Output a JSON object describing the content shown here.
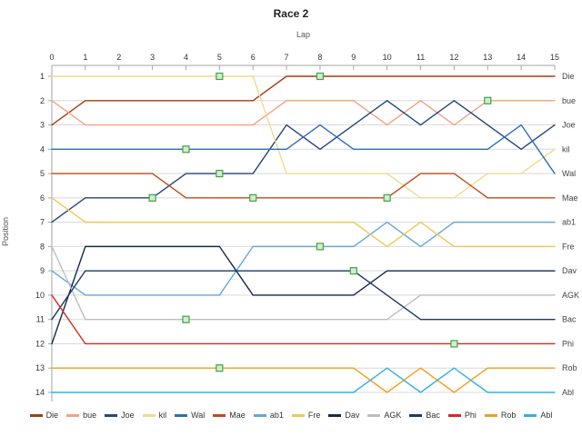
{
  "chart_data": {
    "type": "line",
    "title": "Race 2",
    "xlabel": "Lap",
    "ylabel": "Position",
    "x": [
      0,
      1,
      2,
      3,
      4,
      5,
      6,
      7,
      8,
      9,
      10,
      11,
      12,
      13,
      14,
      15
    ],
    "xlim": [
      0,
      15
    ],
    "ylim": [
      1,
      14
    ],
    "y_ticks": [
      1,
      2,
      3,
      4,
      5,
      6,
      7,
      8,
      9,
      10,
      11,
      12,
      13,
      14
    ],
    "y_axis_inverted": true,
    "grid": "horizontal",
    "legend_position": "bottom",
    "marker_color": "#3fa53f",
    "marker_fill": "#d2ecd2",
    "grid_color": "#d9d9d9",
    "axis_color": "#a6a6a6",
    "tick_text_color": "#333333",
    "right_label_color": "#444444",
    "series": [
      {
        "name": "Die",
        "color": "#A33E10",
        "positions": [
          3,
          2,
          2,
          2,
          2,
          2,
          2,
          1,
          1,
          1,
          1,
          1,
          1,
          1,
          1,
          1
        ]
      },
      {
        "name": "bue",
        "color": "#F4A27D",
        "positions": [
          2,
          3,
          3,
          3,
          3,
          3,
          3,
          2,
          2,
          2,
          3,
          2,
          3,
          2,
          2,
          2
        ]
      },
      {
        "name": "Joe",
        "color": "#24467C",
        "positions": [
          7,
          6,
          6,
          6,
          5,
          5,
          5,
          3,
          4,
          3,
          2,
          3,
          2,
          3,
          4,
          3
        ]
      },
      {
        "name": "kil",
        "color": "#F2DA8E",
        "positions": [
          1,
          1,
          1,
          1,
          1,
          1,
          1,
          5,
          5,
          5,
          5,
          6,
          6,
          5,
          5,
          4
        ]
      },
      {
        "name": "Wal",
        "color": "#2E6EB5",
        "positions": [
          4,
          4,
          4,
          4,
          4,
          4,
          4,
          4,
          3,
          4,
          4,
          4,
          4,
          4,
          3,
          5
        ]
      },
      {
        "name": "Mae",
        "color": "#BF4B12",
        "positions": [
          5,
          5,
          5,
          5,
          6,
          6,
          6,
          6,
          6,
          6,
          6,
          5,
          5,
          6,
          6,
          6
        ]
      },
      {
        "name": "ab1",
        "color": "#62A9DC",
        "positions": [
          9,
          10,
          10,
          10,
          10,
          10,
          8,
          8,
          8,
          8,
          7,
          8,
          7,
          7,
          7,
          7
        ]
      },
      {
        "name": "Fre",
        "color": "#F0C94F",
        "positions": [
          6,
          7,
          7,
          7,
          7,
          7,
          7,
          7,
          7,
          7,
          8,
          7,
          8,
          8,
          8,
          8
        ]
      },
      {
        "name": "Dav",
        "color": "#152A4E",
        "positions": [
          12,
          8,
          8,
          8,
          8,
          8,
          10,
          10,
          10,
          10,
          9,
          9,
          9,
          9,
          9,
          9
        ]
      },
      {
        "name": "AGK",
        "color": "#BEBEBE",
        "positions": [
          8,
          11,
          11,
          11,
          11,
          11,
          11,
          11,
          11,
          11,
          11,
          10,
          10,
          10,
          10,
          10
        ]
      },
      {
        "name": "Bac",
        "color": "#1B3B66",
        "positions": [
          11,
          9,
          9,
          9,
          9,
          9,
          9,
          9,
          9,
          9,
          10,
          11,
          11,
          11,
          11,
          11
        ]
      },
      {
        "name": "Phi",
        "color": "#D9291C",
        "positions": [
          10,
          12,
          12,
          12,
          12,
          12,
          12,
          12,
          12,
          12,
          12,
          12,
          12,
          12,
          12,
          12
        ]
      },
      {
        "name": "Rob",
        "color": "#F2A01D",
        "positions": [
          13,
          13,
          13,
          13,
          13,
          13,
          13,
          13,
          13,
          13,
          14,
          13,
          14,
          13,
          13,
          13
        ]
      },
      {
        "name": "Abl",
        "color": "#35B1E8",
        "positions": [
          14,
          14,
          14,
          14,
          14,
          14,
          14,
          14,
          14,
          14,
          13,
          14,
          13,
          14,
          14,
          14
        ]
      }
    ],
    "markers": [
      {
        "lap": 5,
        "pos": 1
      },
      {
        "lap": 8,
        "pos": 1
      },
      {
        "lap": 13,
        "pos": 2
      },
      {
        "lap": 4,
        "pos": 4
      },
      {
        "lap": 5,
        "pos": 5
      },
      {
        "lap": 3,
        "pos": 6
      },
      {
        "lap": 6,
        "pos": 6
      },
      {
        "lap": 10,
        "pos": 6
      },
      {
        "lap": 8,
        "pos": 8
      },
      {
        "lap": 9,
        "pos": 9
      },
      {
        "lap": 4,
        "pos": 11
      },
      {
        "lap": 12,
        "pos": 12
      },
      {
        "lap": 5,
        "pos": 13
      }
    ]
  }
}
